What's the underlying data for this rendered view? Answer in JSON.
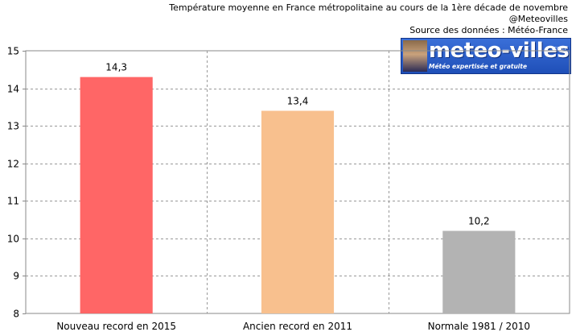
{
  "header": {
    "title": "Température moyenne en France métropolitaine au cours de la 1ère décade de novembre",
    "handle": "@Meteovilles",
    "source": "Source des données : Météo-France"
  },
  "logo": {
    "word": "meteo-villes",
    "dotcom": ".com",
    "tagline": "Météo expertisée et gratuite"
  },
  "chart_data": {
    "type": "bar",
    "categories": [
      "Nouveau record en 2015",
      "Ancien record en 2011",
      "Normale 1981 / 2010"
    ],
    "values": [
      14.3,
      13.4,
      10.2
    ],
    "value_labels": [
      "14,3",
      "13,4",
      "10,2"
    ],
    "colors": [
      "#ff6666",
      "#f8c08e",
      "#b3b3b3"
    ],
    "ylim": [
      8,
      15
    ],
    "yticks": [
      8,
      9,
      10,
      11,
      12,
      13,
      14,
      15
    ],
    "grid": true,
    "legend": "none"
  }
}
